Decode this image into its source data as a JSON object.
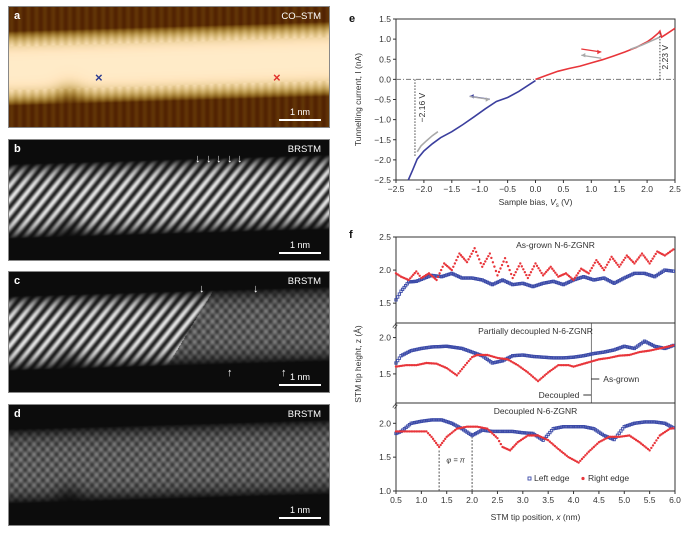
{
  "panels": {
    "a": {
      "letter": "a",
      "tag": "CO–STM",
      "scale": "1 nm",
      "markers": {
        "blue": "×",
        "red": "×"
      },
      "colors": {
        "blue_marker": "#2b3a8f",
        "red_marker": "#e0312b"
      }
    },
    "b": {
      "letter": "b",
      "tag": "BRSTM",
      "scale": "1 nm",
      "arrows": [
        "↓",
        "↓",
        "↓",
        "↓",
        "↓"
      ]
    },
    "c": {
      "letter": "c",
      "tag": "BRSTM",
      "scale": "1 nm",
      "arrows_down": [
        "↓",
        "↓"
      ],
      "arrows_up": [
        "↑",
        "↑"
      ]
    },
    "d": {
      "letter": "d",
      "tag": "BRSTM",
      "scale": "1 nm"
    }
  },
  "chart_data": [
    {
      "id": "e",
      "letter": "e",
      "type": "line",
      "xlabel": "Sample bias, V_s (V)",
      "xlabel_main": "Sample bias, ",
      "xlabel_var": "V",
      "xlabel_sub": "s",
      "xlabel_unit": " (V)",
      "ylabel": "Tunnelling current, I_t (nA)",
      "xlim": [
        -2.5,
        2.5
      ],
      "ylim": [
        -2.5,
        1.5
      ],
      "xticks": [
        -2.5,
        -2.0,
        -1.5,
        -1.0,
        -0.5,
        0.0,
        0.5,
        1.0,
        1.5,
        2.0,
        2.5
      ],
      "xtick_labels": [
        "−2.5",
        "−2.0",
        "−1.5",
        "−1.0",
        "−0.5",
        "0.0",
        "0.5",
        "1.0",
        "1.5",
        "2.0",
        "2.5"
      ],
      "yticks": [
        -2.5,
        -2.0,
        -1.5,
        -1.0,
        -0.5,
        0.0,
        0.5,
        1.0,
        1.5
      ],
      "ytick_labels": [
        "−2.5",
        "−2.0",
        "−1.5",
        "−1.0",
        "−0.5",
        "0.0",
        "0.5",
        "1.0",
        "1.5"
      ],
      "annotations": [
        {
          "text": "−2.16 V",
          "x": -2.16
        },
        {
          "text": "2.23 V",
          "x": 2.23
        }
      ],
      "series": [
        {
          "name": "negative sweep",
          "color": "#3b3f9e",
          "x": [
            -2.28,
            -2.2,
            -2.12,
            -2.0,
            -1.85,
            -1.7,
            -1.5,
            -1.3,
            -1.1,
            -0.9,
            -0.7,
            -0.5,
            -0.3,
            -0.1,
            0.0
          ],
          "y": [
            -2.5,
            -2.25,
            -1.98,
            -1.78,
            -1.6,
            -1.45,
            -1.3,
            -1.12,
            -0.93,
            -0.73,
            -0.55,
            -0.45,
            -0.3,
            -0.12,
            -0.03
          ]
        },
        {
          "name": "negative sweep (return)",
          "color": "#a9a9a9",
          "x": [
            -2.12,
            -2.05,
            -1.95,
            -1.85,
            -1.75
          ],
          "y": [
            -1.8,
            -1.65,
            -1.52,
            -1.4,
            -1.3
          ]
        },
        {
          "name": "positive sweep",
          "color": "#e8353a",
          "x": [
            0.0,
            0.2,
            0.4,
            0.6,
            0.8,
            1.0,
            1.2,
            1.4,
            1.6,
            1.8,
            2.0,
            2.1,
            2.2,
            2.23,
            2.26,
            2.35,
            2.5
          ],
          "y": [
            0.0,
            0.1,
            0.2,
            0.27,
            0.33,
            0.41,
            0.49,
            0.58,
            0.68,
            0.79,
            0.93,
            1.03,
            1.15,
            1.2,
            1.05,
            1.13,
            1.27
          ]
        },
        {
          "name": "positive sweep (return)",
          "color": "#a9a9a9",
          "x": [
            1.7,
            1.9,
            2.1,
            2.23
          ],
          "y": [
            0.75,
            0.85,
            0.97,
            1.05
          ]
        }
      ],
      "sweep_arrows": [
        {
          "color": "#3b3f9e",
          "dir": "left",
          "x": -1.0,
          "y": -0.42
        },
        {
          "color": "#a9a9a9",
          "dir": "right",
          "x": -1.0,
          "y": -0.5
        },
        {
          "color": "#e8353a",
          "dir": "right",
          "x": 1.0,
          "y": 0.68
        },
        {
          "color": "#a9a9a9",
          "dir": "left",
          "x": 1.0,
          "y": 0.6
        }
      ]
    },
    {
      "id": "f",
      "letter": "f",
      "type": "scatter",
      "xlabel": "STM tip position, x (nm)",
      "xlabel_main": "STM tip position, ",
      "xlabel_var": "x",
      "xlabel_unit": " (nm)",
      "ylabel": "STM tip height, z (Å)",
      "xlim": [
        0.5,
        6.0
      ],
      "xticks": [
        0.5,
        1.0,
        1.5,
        2.0,
        2.5,
        3.0,
        3.5,
        4.0,
        4.5,
        5.0,
        5.5,
        6.0
      ],
      "xtick_labels": [
        "0.5",
        "1.0",
        "1.5",
        "2.0",
        "2.5",
        "3.0",
        "3.5",
        "4.0",
        "4.5",
        "5.0",
        "5.5",
        "6.0"
      ],
      "legend": [
        {
          "label": "Left edge",
          "color": "#3b4aa8",
          "marker": "square"
        },
        {
          "label": "Right edge",
          "color": "#e8353a",
          "marker": "circle"
        }
      ],
      "legend_position": "bottom-right",
      "subplots": [
        {
          "title": "As-grown N-6-ZGNR",
          "ylim": [
            1.2,
            2.5
          ],
          "yticks": [
            1.5,
            2.0,
            2.5
          ],
          "ytick_labels": [
            "1.5",
            "2.0",
            "2.5"
          ],
          "left": {
            "x": [
              0.5,
              0.6,
              0.75,
              0.9,
              1.0,
              1.2,
              1.4,
              1.6,
              1.8,
              2.0,
              2.2,
              2.4,
              2.6,
              2.8,
              3.0,
              3.2,
              3.4,
              3.6,
              3.8,
              4.0,
              4.2,
              4.4,
              4.6,
              4.8,
              5.0,
              5.2,
              5.4,
              5.6,
              5.8,
              6.0
            ],
            "y": [
              1.55,
              1.68,
              1.82,
              1.83,
              1.86,
              1.92,
              1.9,
              1.95,
              1.88,
              1.88,
              1.85,
              1.78,
              1.85,
              1.78,
              1.8,
              1.75,
              1.8,
              1.83,
              1.78,
              1.85,
              1.9,
              1.85,
              1.88,
              1.8,
              1.88,
              1.95,
              1.95,
              1.9,
              2.0,
              1.98
            ]
          },
          "right": {
            "x": [
              0.5,
              0.6,
              0.75,
              0.9,
              1.0,
              1.15,
              1.3,
              1.45,
              1.6,
              1.75,
              1.9,
              2.05,
              2.2,
              2.35,
              2.5,
              2.65,
              2.8,
              2.95,
              3.1,
              3.25,
              3.4,
              3.55,
              3.7,
              3.85,
              4.0,
              4.15,
              4.3,
              4.45,
              4.6,
              4.75,
              4.9,
              5.05,
              5.2,
              5.35,
              5.5,
              5.65,
              5.8,
              6.0
            ],
            "y": [
              1.95,
              1.9,
              1.85,
              1.98,
              1.88,
              1.95,
              1.85,
              2.1,
              2.0,
              2.25,
              2.12,
              2.33,
              2.05,
              2.25,
              1.92,
              2.18,
              1.88,
              2.1,
              1.88,
              2.1,
              1.92,
              2.05,
              1.9,
              1.95,
              1.85,
              2.02,
              1.95,
              2.15,
              2.0,
              2.2,
              2.05,
              2.22,
              2.1,
              2.25,
              2.1,
              2.28,
              2.22,
              2.33
            ]
          }
        },
        {
          "title": "Partially decoupled N-6-ZGNR",
          "ylim": [
            1.1,
            2.2
          ],
          "yticks": [
            1.5,
            2.0
          ],
          "ytick_labels": [
            "1.5",
            "2.0"
          ],
          "divider_x": 4.35,
          "annotations": [
            {
              "text": "As-grown",
              "side": "right"
            },
            {
              "text": "Decoupled",
              "side": "left"
            }
          ],
          "left": {
            "x": [
              0.5,
              0.6,
              0.8,
              1.0,
              1.2,
              1.5,
              1.8,
              2.0,
              2.2,
              2.4,
              2.6,
              2.8,
              3.0,
              3.2,
              3.4,
              3.6,
              3.8,
              4.0,
              4.2,
              4.4,
              4.6,
              4.8,
              5.0,
              5.2,
              5.4,
              5.6,
              5.8,
              6.0
            ],
            "y": [
              1.65,
              1.75,
              1.82,
              1.85,
              1.87,
              1.88,
              1.85,
              1.8,
              1.75,
              1.65,
              1.68,
              1.75,
              1.76,
              1.74,
              1.73,
              1.72,
              1.72,
              1.73,
              1.75,
              1.78,
              1.8,
              1.83,
              1.88,
              1.85,
              1.95,
              1.88,
              1.85,
              1.9
            ]
          },
          "right": {
            "x": [
              0.5,
              0.7,
              0.9,
              1.1,
              1.3,
              1.5,
              1.7,
              1.9,
              2.0,
              2.1,
              2.3,
              2.5,
              2.7,
              2.9,
              3.1,
              3.3,
              3.5,
              3.7,
              3.9,
              4.0,
              4.1,
              4.3,
              4.5,
              4.7,
              4.9,
              5.1,
              5.3,
              5.5,
              5.7,
              5.9,
              6.0
            ],
            "y": [
              1.6,
              1.62,
              1.62,
              1.65,
              1.64,
              1.58,
              1.48,
              1.65,
              1.73,
              1.76,
              1.76,
              1.72,
              1.7,
              1.62,
              1.52,
              1.4,
              1.52,
              1.62,
              1.62,
              1.6,
              1.62,
              1.66,
              1.7,
              1.72,
              1.75,
              1.76,
              1.8,
              1.82,
              1.85,
              1.88,
              1.9
            ]
          }
        },
        {
          "title": "Decoupled N-6-ZGNR",
          "ylim": [
            1.0,
            2.3
          ],
          "yticks": [
            1.0,
            1.5,
            2.0
          ],
          "ytick_labels": [
            "1.0",
            "1.5",
            "2.0"
          ],
          "phase_label": "φ = π",
          "phase_lines": [
            1.35,
            2.0
          ],
          "left": {
            "x": [
              0.5,
              0.6,
              0.8,
              1.0,
              1.2,
              1.4,
              1.6,
              1.8,
              2.0,
              2.2,
              2.4,
              2.6,
              2.8,
              3.0,
              3.2,
              3.4,
              3.6,
              3.8,
              4.0,
              4.2,
              4.4,
              4.6,
              4.8,
              5.0,
              5.2,
              5.4,
              5.6,
              5.8,
              6.0
            ],
            "y": [
              1.85,
              1.88,
              2.0,
              2.03,
              2.05,
              2.05,
              2.0,
              1.92,
              1.82,
              1.9,
              1.88,
              1.88,
              1.88,
              1.86,
              1.85,
              1.75,
              1.92,
              1.95,
              1.95,
              1.95,
              1.92,
              1.82,
              1.76,
              1.95,
              2.0,
              2.02,
              2.02,
              2.0,
              1.92
            ]
          },
          "right": {
            "x": [
              0.5,
              0.7,
              0.9,
              1.1,
              1.2,
              1.35,
              1.5,
              1.7,
              1.9,
              2.1,
              2.3,
              2.5,
              2.6,
              2.75,
              2.9,
              3.1,
              3.3,
              3.5,
              3.7,
              3.9,
              4.1,
              4.3,
              4.5,
              4.7,
              4.9,
              5.1,
              5.3,
              5.5,
              5.7,
              5.9,
              6.0
            ],
            "y": [
              1.88,
              1.88,
              1.88,
              1.88,
              1.8,
              1.65,
              1.8,
              1.92,
              1.95,
              1.95,
              1.92,
              1.78,
              1.65,
              1.6,
              1.72,
              1.82,
              1.82,
              1.75,
              1.62,
              1.5,
              1.42,
              1.58,
              1.72,
              1.8,
              1.8,
              1.82,
              1.72,
              1.6,
              1.82,
              1.92,
              1.93
            ]
          }
        }
      ]
    }
  ]
}
